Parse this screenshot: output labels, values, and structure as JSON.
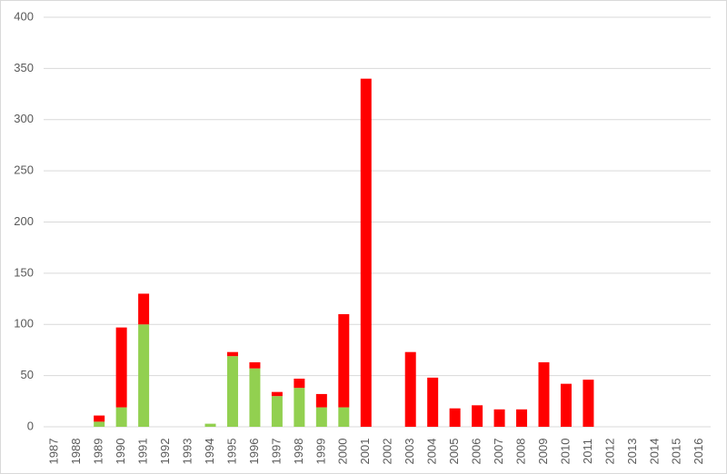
{
  "chart_data": {
    "type": "stacked-bar",
    "categories": [
      "1987",
      "1988",
      "1989",
      "1990",
      "1991",
      "1992",
      "1993",
      "1994",
      "1995",
      "1996",
      "1997",
      "1998",
      "1999",
      "2000",
      "2001",
      "2002",
      "2003",
      "2004",
      "2005",
      "2006",
      "2007",
      "2008",
      "2009",
      "2010",
      "2011",
      "2012",
      "2013",
      "2014",
      "2015",
      "2016"
    ],
    "series": [
      {
        "color": "#92d050",
        "values": [
          0,
          0,
          5,
          19,
          100,
          0,
          0,
          3,
          69,
          57,
          30,
          38,
          19,
          19,
          0,
          0,
          0,
          0,
          0,
          0,
          0,
          0,
          0,
          0,
          0,
          0,
          0,
          0,
          0,
          0
        ]
      },
      {
        "color": "#ff0000",
        "values": [
          0,
          0,
          6,
          78,
          30,
          0,
          0,
          0,
          4,
          6,
          4,
          9,
          13,
          91,
          340,
          0,
          73,
          48,
          18,
          21,
          17,
          17,
          63,
          42,
          46,
          0,
          0,
          0,
          0,
          0
        ]
      }
    ],
    "ylim": [
      0,
      400
    ],
    "yticks": [
      0,
      50,
      100,
      150,
      200,
      250,
      300,
      350,
      400
    ],
    "grid": true
  }
}
